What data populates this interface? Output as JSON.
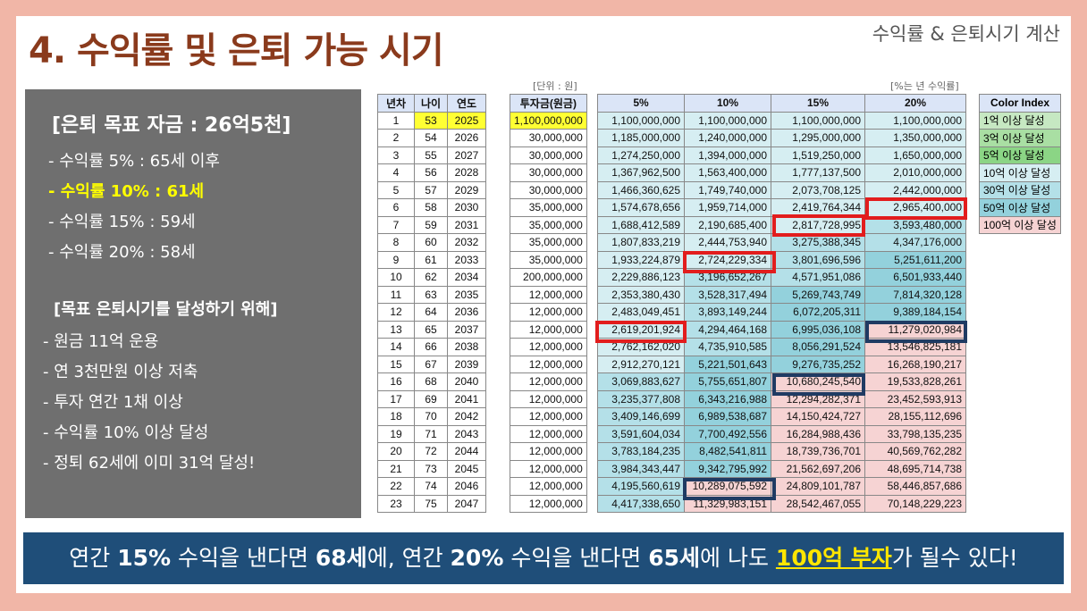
{
  "header": {
    "title": "4. 수익률 및 은퇴 가능 시기",
    "subtitle": "수익률 & 은퇴시기 계산"
  },
  "left_panel": {
    "goal": "[은퇴 목표 자금 : 26억5천]",
    "rates": [
      "- 수익률   5% : 65세 이후",
      "- 수익률 10% : 61세",
      "- 수익률 15% : 59세",
      "- 수익률 20% : 58세"
    ],
    "section_title": "[목표 은퇴시기를 달성하기 위해]",
    "steps": [
      "- 원금 11억 운용",
      "- 연 3천만원 이상 저축",
      "- 투자 연간 1채 이상",
      "- 수익률 10% 이상 달성",
      "- 정퇴 62세에 이미 31억 달성!"
    ]
  },
  "table": {
    "unit_label": "[단위 : 원]",
    "rate_note": "[%는 년 수익률]",
    "headers": [
      "년차",
      "나이",
      "연도",
      "투자금(원금)",
      "5%",
      "10%",
      "15%",
      "20%"
    ],
    "rows": [
      [
        "1",
        "53",
        "2025",
        "1,100,000,000",
        "1,100,000,000",
        "1,100,000,000",
        "1,100,000,000",
        "1,100,000,000"
      ],
      [
        "2",
        "54",
        "2026",
        "30,000,000",
        "1,185,000,000",
        "1,240,000,000",
        "1,295,000,000",
        "1,350,000,000"
      ],
      [
        "3",
        "55",
        "2027",
        "30,000,000",
        "1,274,250,000",
        "1,394,000,000",
        "1,519,250,000",
        "1,650,000,000"
      ],
      [
        "4",
        "56",
        "2028",
        "30,000,000",
        "1,367,962,500",
        "1,563,400,000",
        "1,777,137,500",
        "2,010,000,000"
      ],
      [
        "5",
        "57",
        "2029",
        "30,000,000",
        "1,466,360,625",
        "1,749,740,000",
        "2,073,708,125",
        "2,442,000,000"
      ],
      [
        "6",
        "58",
        "2030",
        "35,000,000",
        "1,574,678,656",
        "1,959,714,000",
        "2,419,764,344",
        "2,965,400,000"
      ],
      [
        "7",
        "59",
        "2031",
        "35,000,000",
        "1,688,412,589",
        "2,190,685,400",
        "2,817,728,995",
        "3,593,480,000"
      ],
      [
        "8",
        "60",
        "2032",
        "35,000,000",
        "1,807,833,219",
        "2,444,753,940",
        "3,275,388,345",
        "4,347,176,000"
      ],
      [
        "9",
        "61",
        "2033",
        "35,000,000",
        "1,933,224,879",
        "2,724,229,334",
        "3,801,696,596",
        "5,251,611,200"
      ],
      [
        "10",
        "62",
        "2034",
        "200,000,000",
        "2,229,886,123",
        "3,196,652,267",
        "4,571,951,086",
        "6,501,933,440"
      ],
      [
        "11",
        "63",
        "2035",
        "12,000,000",
        "2,353,380,430",
        "3,528,317,494",
        "5,269,743,749",
        "7,814,320,128"
      ],
      [
        "12",
        "64",
        "2036",
        "12,000,000",
        "2,483,049,451",
        "3,893,149,244",
        "6,072,205,311",
        "9,389,184,154"
      ],
      [
        "13",
        "65",
        "2037",
        "12,000,000",
        "2,619,201,924",
        "4,294,464,168",
        "6,995,036,108",
        "11,279,020,984"
      ],
      [
        "14",
        "66",
        "2038",
        "12,000,000",
        "2,762,162,020",
        "4,735,910,585",
        "8,056,291,524",
        "13,546,825,181"
      ],
      [
        "15",
        "67",
        "2039",
        "12,000,000",
        "2,912,270,121",
        "5,221,501,643",
        "9,276,735,252",
        "16,268,190,217"
      ],
      [
        "16",
        "68",
        "2040",
        "12,000,000",
        "3,069,883,627",
        "5,755,651,807",
        "10,680,245,540",
        "19,533,828,261"
      ],
      [
        "17",
        "69",
        "2041",
        "12,000,000",
        "3,235,377,808",
        "6,343,216,988",
        "12,294,282,371",
        "23,452,593,913"
      ],
      [
        "18",
        "70",
        "2042",
        "12,000,000",
        "3,409,146,699",
        "6,989,538,687",
        "14,150,424,727",
        "28,155,112,696"
      ],
      [
        "19",
        "71",
        "2043",
        "12,000,000",
        "3,591,604,034",
        "7,700,492,556",
        "16,284,988,436",
        "33,798,135,235"
      ],
      [
        "20",
        "72",
        "2044",
        "12,000,000",
        "3,783,184,235",
        "8,482,541,811",
        "18,739,736,701",
        "40,569,762,282"
      ],
      [
        "21",
        "73",
        "2045",
        "12,000,000",
        "3,984,343,447",
        "9,342,795,992",
        "21,562,697,206",
        "48,695,714,738"
      ],
      [
        "22",
        "74",
        "2046",
        "12,000,000",
        "4,195,560,619",
        "10,289,075,592",
        "24,809,101,787",
        "58,446,857,686"
      ],
      [
        "23",
        "75",
        "2047",
        "12,000,000",
        "4,417,338,650",
        "11,329,983,151",
        "28,542,467,055",
        "70,148,229,223"
      ]
    ]
  },
  "color_index": {
    "header": "Color Index",
    "items": [
      {
        "label": "1억 이상 달성",
        "color": "#c6e8c2"
      },
      {
        "label": "3억 이상 달성",
        "color": "#a9dfa3"
      },
      {
        "label": "5억 이상 달성",
        "color": "#8bd585"
      },
      {
        "label": "10억 이상 달성",
        "color": "#d6eef2"
      },
      {
        "label": "30억 이상 달성",
        "color": "#b4e0e8"
      },
      {
        "label": "50억 이상 달성",
        "color": "#93d1dc"
      },
      {
        "label": "100억 이상 달성",
        "color": "#f6d3d3"
      }
    ]
  },
  "banner": {
    "p1": "연간 ",
    "b1": "15%",
    "p2": " 수익을 낸다면 ",
    "b2": "68세",
    "p3": "에, 연간 ",
    "b3": "20%",
    "p4": " 수익을 낸다면 ",
    "b4": "65세",
    "p5": "에 나도 ",
    "gold": "100억 부자",
    "p6": "가 될수 있다!"
  },
  "colors": {
    "title": "#8a3a1c",
    "background": "#f1b6a7",
    "banner": "#1f4e79",
    "highlight": "#ffff33",
    "red_box": "#e21d1d",
    "navy_box": "#1f3b63"
  }
}
